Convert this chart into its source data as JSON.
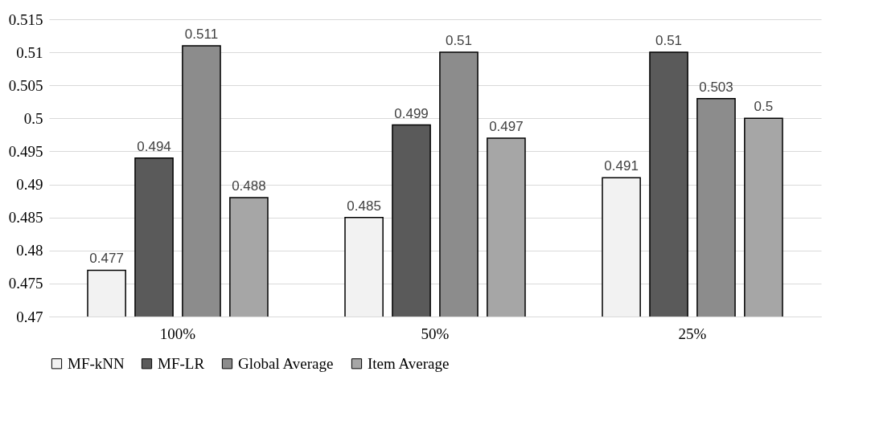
{
  "chart_data": {
    "type": "bar",
    "categories": [
      "100%",
      "50%",
      "25%"
    ],
    "series": [
      {
        "name": "MF-kNN",
        "color": "#f2f2f2",
        "values": [
          0.477,
          0.485,
          0.491
        ]
      },
      {
        "name": "MF-LR",
        "color": "#5a5a5a",
        "values": [
          0.494,
          0.499,
          0.51
        ]
      },
      {
        "name": "Global Average",
        "color": "#8c8c8c",
        "values": [
          0.511,
          0.51,
          0.503
        ]
      },
      {
        "name": "Item Average",
        "color": "#a6a6a6",
        "values": [
          0.488,
          0.497,
          0.5
        ]
      }
    ],
    "ylim": [
      0.47,
      0.515
    ],
    "yticks": [
      0.47,
      0.475,
      0.48,
      0.485,
      0.49,
      0.495,
      0.5,
      0.505,
      0.51,
      0.515
    ],
    "grid": "y",
    "legend": "bottom",
    "data_labels": true
  }
}
